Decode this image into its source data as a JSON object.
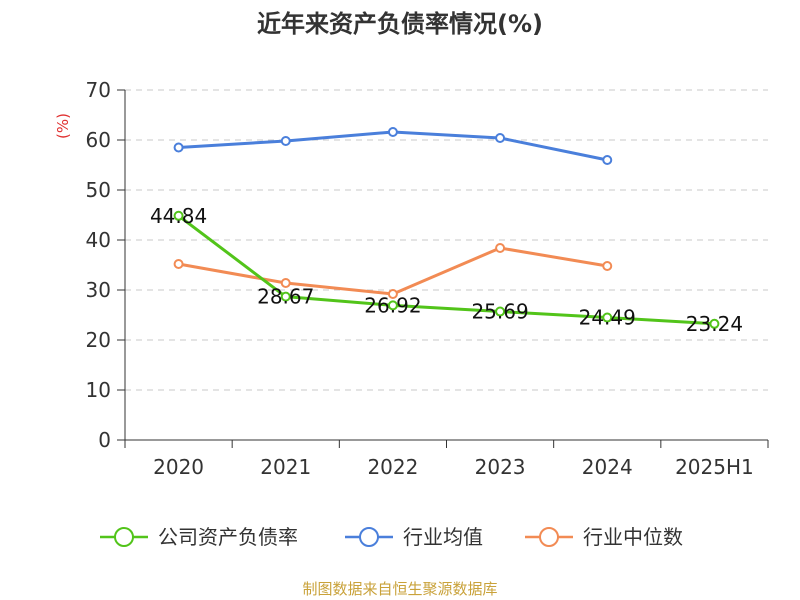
{
  "title": "近年来资产负债率情况(%)",
  "source": "制图数据来自恒生聚源数据库",
  "chart_data": {
    "type": "line",
    "title": "近年来资产负债率情况(%)",
    "unit_label": "(%)",
    "categories": [
      "2020",
      "2021",
      "2022",
      "2023",
      "2024",
      "2025H1"
    ],
    "ylim": [
      0,
      70
    ],
    "yticks": [
      0,
      10,
      20,
      30,
      40,
      50,
      60,
      70
    ],
    "grid": true,
    "legend_position": "bottom",
    "series": [
      {
        "name": "公司资产负债率",
        "color": "#52c41a",
        "values": [
          44.84,
          28.67,
          26.92,
          25.69,
          24.49,
          23.24
        ],
        "labels": [
          "44.84",
          "28.67",
          "26.92",
          "25.69",
          "24.49",
          "23.24"
        ]
      },
      {
        "name": "行业均值",
        "color": "#4a7fdb",
        "values": [
          58.5,
          59.8,
          61.6,
          60.4,
          56.0,
          null
        ]
      },
      {
        "name": "行业中位数",
        "color": "#f28b54",
        "values": [
          35.2,
          31.4,
          29.2,
          38.4,
          34.8,
          null
        ]
      }
    ]
  }
}
